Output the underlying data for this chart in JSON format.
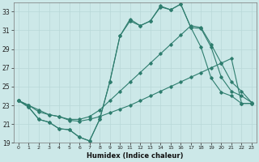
{
  "xlabel": "Humidex (Indice chaleur)",
  "bg_color": "#cce8e8",
  "grid_color": "#b8d8d8",
  "line_color": "#2e7d6e",
  "xlim": [
    -0.5,
    23.5
  ],
  "ylim": [
    19,
    34
  ],
  "yticks": [
    19,
    21,
    23,
    25,
    27,
    29,
    31,
    33
  ],
  "xticks": [
    0,
    1,
    2,
    3,
    4,
    5,
    6,
    7,
    8,
    9,
    10,
    11,
    12,
    13,
    14,
    15,
    16,
    17,
    18,
    19,
    20,
    21,
    22,
    23
  ],
  "line1_x": [
    0,
    1,
    2,
    3,
    4,
    5,
    6,
    7,
    8,
    9,
    10,
    11,
    12,
    13,
    14,
    15,
    16,
    17,
    18,
    19,
    20,
    21,
    22,
    23
  ],
  "line1_y": [
    23.5,
    22.8,
    21.5,
    21.2,
    20.5,
    20.4,
    19.6,
    19.2,
    21.5,
    25.5,
    30.4,
    32.2,
    31.5,
    32.0,
    33.6,
    33.2,
    33.8,
    31.3,
    31.2,
    29.2,
    26.0,
    24.5,
    24.0,
    23.3
  ],
  "line2_x": [
    0,
    1,
    2,
    3,
    4,
    5,
    6,
    7,
    8,
    9,
    10,
    11,
    12,
    13,
    14,
    15,
    16,
    17,
    18,
    19,
    20,
    21,
    22,
    23
  ],
  "line2_y": [
    23.5,
    22.8,
    21.5,
    21.2,
    20.5,
    20.4,
    19.6,
    19.2,
    21.5,
    25.5,
    30.4,
    32.0,
    31.5,
    32.0,
    33.5,
    33.2,
    33.8,
    31.3,
    29.2,
    25.9,
    24.4,
    24.0,
    23.2,
    23.2
  ],
  "line3_x": [
    0,
    1,
    2,
    3,
    4,
    5,
    6,
    7,
    8,
    9,
    10,
    11,
    12,
    13,
    14,
    15,
    16,
    17,
    18,
    19,
    20,
    21,
    22,
    23
  ],
  "line3_y": [
    23.5,
    23.0,
    22.5,
    22.0,
    21.8,
    21.5,
    21.5,
    21.8,
    22.5,
    23.5,
    24.5,
    25.5,
    26.5,
    27.5,
    28.5,
    29.5,
    30.5,
    31.5,
    31.3,
    29.5,
    27.5,
    25.5,
    24.5,
    23.3
  ],
  "line4_x": [
    0,
    1,
    2,
    3,
    4,
    5,
    6,
    7,
    8,
    9,
    10,
    11,
    12,
    13,
    14,
    15,
    16,
    17,
    18,
    19,
    20,
    21,
    22,
    23
  ],
  "line4_y": [
    23.5,
    23.0,
    22.3,
    22.0,
    21.8,
    21.4,
    21.3,
    21.5,
    21.8,
    22.2,
    22.6,
    23.0,
    23.5,
    24.0,
    24.5,
    25.0,
    25.5,
    26.0,
    26.5,
    27.0,
    27.5,
    28.0,
    23.2,
    23.2
  ]
}
